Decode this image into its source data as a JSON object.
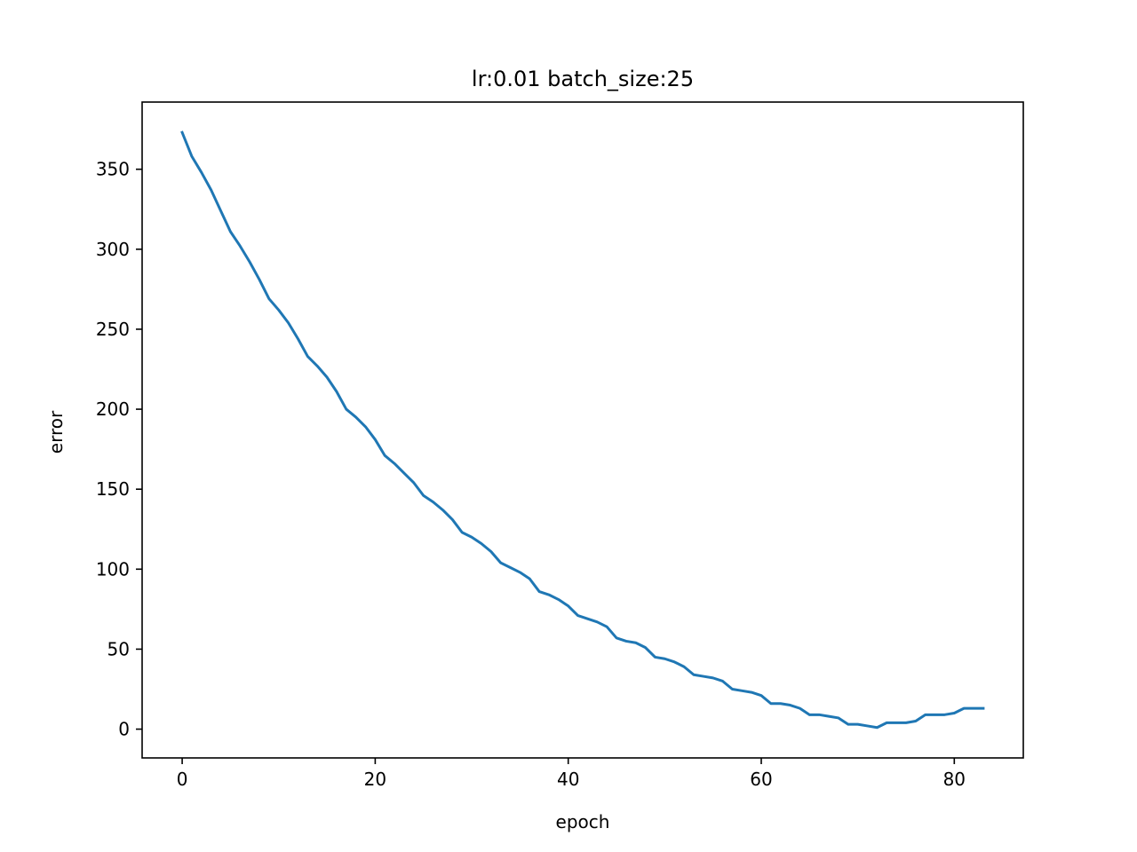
{
  "chart_data": {
    "type": "line",
    "title": "lr:0.01 batch_size:25",
    "xlabel": "epoch",
    "ylabel": "error",
    "xlim": [
      -4.15,
      87.15
    ],
    "ylim": [
      -18,
      392
    ],
    "xticks": [
      0,
      20,
      40,
      60,
      80
    ],
    "yticks": [
      0,
      50,
      100,
      150,
      200,
      250,
      300,
      350
    ],
    "grid": false,
    "legend": "none",
    "series": [
      {
        "color": "#1f77b4",
        "x": [
          0,
          1,
          2,
          3,
          4,
          5,
          6,
          7,
          8,
          9,
          10,
          11,
          12,
          13,
          14,
          15,
          16,
          17,
          18,
          19,
          20,
          21,
          22,
          23,
          24,
          25,
          26,
          27,
          28,
          29,
          30,
          31,
          32,
          33,
          34,
          35,
          36,
          37,
          38,
          39,
          40,
          41,
          42,
          43,
          44,
          45,
          46,
          47,
          48,
          49,
          50,
          51,
          52,
          53,
          54,
          55,
          56,
          57,
          58,
          59,
          60,
          61,
          62,
          63,
          64,
          65,
          66,
          67,
          68,
          69,
          70,
          71,
          72,
          73,
          74,
          75,
          76,
          77,
          78,
          79,
          80,
          81,
          82,
          83
        ],
        "y": [
          373,
          358,
          348,
          337,
          324,
          311,
          302,
          292,
          281,
          269,
          262,
          254,
          244,
          233,
          227,
          220,
          211,
          200,
          195,
          189,
          181,
          171,
          166,
          160,
          154,
          146,
          142,
          137,
          131,
          123,
          120,
          116,
          111,
          104,
          101,
          98,
          94,
          86,
          84,
          81,
          77,
          71,
          69,
          67,
          64,
          57,
          55,
          54,
          51,
          45,
          44,
          42,
          39,
          34,
          33,
          32,
          30,
          25,
          24,
          23,
          21,
          16,
          16,
          15,
          13,
          9,
          9,
          8,
          7,
          3,
          3,
          2,
          1,
          4,
          4,
          4,
          5,
          9,
          9,
          9,
          10,
          13,
          13,
          13
        ]
      }
    ]
  }
}
